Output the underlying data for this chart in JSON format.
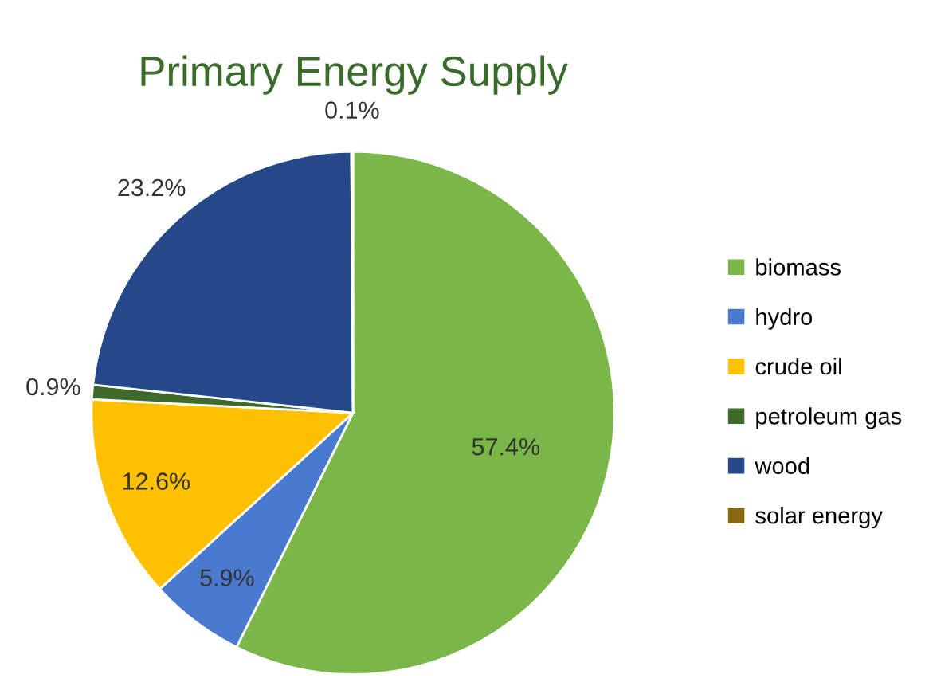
{
  "chart_data": {
    "type": "pie",
    "title": "Primary Energy Supply",
    "categories": [
      "biomass",
      "hydro",
      "crude oil",
      "petroleum gas",
      "wood",
      "solar energy"
    ],
    "values": [
      57.4,
      5.9,
      12.6,
      0.9,
      23.2,
      0.1
    ],
    "value_labels": [
      "57.4%",
      "5.9%",
      "12.6%",
      "0.9%",
      "23.2%",
      "0.1%"
    ],
    "colors": [
      "#7ab648",
      "#4a7ad0",
      "#ffc000",
      "#3f6b2a",
      "#24488a",
      "#8a6a10"
    ],
    "legend": "right"
  }
}
